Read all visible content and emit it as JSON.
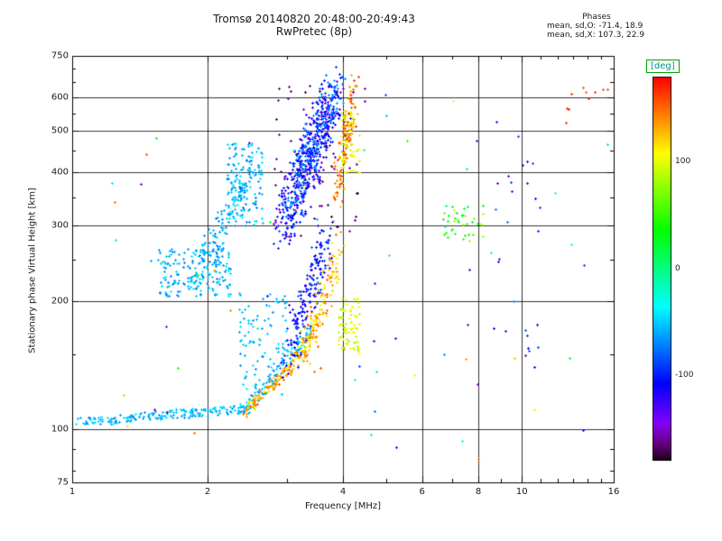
{
  "annotations": {
    "phases_heading": "Phases",
    "phases_o": "mean, sd,O: -71.4, 18.9",
    "phases_x": "mean, sd,X: 107.3, 22.9"
  },
  "colorbar": {
    "label": "[deg]",
    "ticks": [
      100,
      0,
      -100
    ],
    "range": [
      -180,
      180
    ],
    "label_color": "#008b8b",
    "box_border_color": "#00a000"
  },
  "chart_data": {
    "type": "scatter",
    "title": "Tromsø 20140820 20:48:00-20:49:43",
    "subtitle": "RwPretec (8p)",
    "xlabel": "Frequency [MHz]",
    "ylabel": "Stationary phase Virtual Height [km]",
    "xscale": "log",
    "yscale": "log",
    "xlim": [
      1,
      16
    ],
    "ylim": [
      75,
      750
    ],
    "x_ticks": [
      1,
      2,
      4,
      6,
      8,
      10,
      16
    ],
    "x_grid": [
      2,
      4,
      6,
      8,
      10
    ],
    "x_minor": [
      3,
      5,
      7,
      9,
      11,
      12,
      13,
      14,
      15
    ],
    "y_ticks": [
      750,
      600,
      500,
      400,
      300,
      200,
      100,
      75
    ],
    "y_grid": [
      600,
      500,
      400,
      300,
      200,
      100
    ],
    "y_minor": [
      80,
      90,
      150,
      250,
      350,
      450,
      550,
      650,
      700
    ],
    "color_range": [
      -180,
      180
    ],
    "colormap": "rainbow",
    "marker": "plus",
    "seed": 20140820,
    "clusters": [
      {
        "name": "e-trace-cyan-flat",
        "mode": "trace",
        "n": 190,
        "x": [
          1.02,
          2.45
        ],
        "y": [
          104,
          112
        ],
        "jx": 0.02,
        "jy": 0.05,
        "v": [
          -70,
          -40
        ]
      },
      {
        "name": "e-trace-cyan-rise",
        "mode": "trace",
        "n": 90,
        "x": [
          2.45,
          3.35
        ],
        "y": [
          112,
          170
        ],
        "jx": 0.03,
        "jy": 0.08,
        "v": [
          -70,
          -40
        ]
      },
      {
        "name": "e-trace-orange",
        "mode": "trace",
        "n": 95,
        "x": [
          2.4,
          3.1
        ],
        "y": [
          109,
          142
        ],
        "jx": 0.02,
        "jy": 0.06,
        "v": [
          110,
          160
        ]
      },
      {
        "name": "orange-mid-trace",
        "mode": "trace",
        "n": 60,
        "x": [
          3.0,
          3.6
        ],
        "y": [
          135,
          185
        ],
        "jx": 0.03,
        "jy": 0.1,
        "v": [
          100,
          150
        ]
      },
      {
        "name": "cyan-blob-midleft",
        "mode": "blob",
        "n": 170,
        "x": [
          1.55,
          2.25
        ],
        "y": [
          205,
          265
        ],
        "v": [
          -75,
          -40
        ]
      },
      {
        "name": "cyan-ascending",
        "mode": "trace",
        "n": 150,
        "x": [
          1.9,
          2.55
        ],
        "y": [
          230,
          430
        ],
        "jx": 0.08,
        "jy": 0.15,
        "v": [
          -75,
          -40
        ]
      },
      {
        "name": "cyan-upper-patch",
        "mode": "blob",
        "n": 120,
        "x": [
          2.2,
          2.65
        ],
        "y": [
          300,
          470
        ],
        "v": [
          -75,
          -40
        ]
      },
      {
        "name": "main-darkblue-band",
        "mode": "trace",
        "n": 430,
        "x": [
          2.95,
          3.8
        ],
        "y": [
          300,
          620
        ],
        "jx": 0.12,
        "jy": 0.25,
        "v": [
          -140,
          -90
        ]
      },
      {
        "name": "main-blue-band",
        "mode": "trace",
        "n": 210,
        "x": [
          3.0,
          3.85
        ],
        "y": [
          320,
          640
        ],
        "jx": 0.1,
        "jy": 0.22,
        "v": [
          -95,
          -60
        ]
      },
      {
        "name": "orange-right-column",
        "mode": "trace",
        "n": 130,
        "x": [
          3.85,
          4.25
        ],
        "y": [
          360,
          630
        ],
        "jx": 0.04,
        "jy": 0.3,
        "v": [
          120,
          170
        ]
      },
      {
        "name": "yellow-upper-accents",
        "mode": "blob",
        "n": 55,
        "x": [
          3.95,
          4.35
        ],
        "y": [
          400,
          560
        ],
        "v": [
          80,
          115
        ]
      },
      {
        "name": "secondhop-blue",
        "mode": "trace",
        "n": 180,
        "x": [
          3.0,
          3.7
        ],
        "y": [
          150,
          280
        ],
        "jx": 0.08,
        "jy": 0.25,
        "v": [
          -130,
          -80
        ]
      },
      {
        "name": "secondhop-orange",
        "mode": "trace",
        "n": 115,
        "x": [
          3.25,
          3.95
        ],
        "y": [
          148,
          265
        ],
        "jx": 0.05,
        "jy": 0.2,
        "v": [
          105,
          155
        ]
      },
      {
        "name": "yellow-low-patch",
        "mode": "blob",
        "n": 70,
        "x": [
          3.9,
          4.35
        ],
        "y": [
          148,
          205
        ],
        "v": [
          80,
          115
        ]
      },
      {
        "name": "cyan-lowmid-blob",
        "mode": "blob",
        "n": 95,
        "x": [
          2.35,
          3.0
        ],
        "y": [
          120,
          210
        ],
        "v": [
          -70,
          -40
        ]
      },
      {
        "name": "green-cluster-7mhz",
        "mode": "blob",
        "n": 38,
        "x": [
          6.6,
          8.3
        ],
        "y": [
          275,
          335
        ],
        "v": [
          10,
          90
        ]
      },
      {
        "name": "sparse-anywhere",
        "mode": "blob",
        "n": 70,
        "x": [
          1.2,
          15.5
        ],
        "y": [
          85,
          650
        ],
        "v": [
          -170,
          170
        ]
      },
      {
        "name": "red-high-right",
        "mode": "blob",
        "n": 8,
        "x": [
          12.5,
          15.5
        ],
        "y": [
          560,
          640
        ],
        "v": [
          150,
          175
        ]
      },
      {
        "name": "blue-sparse-right",
        "mode": "blob",
        "n": 25,
        "x": [
          8.5,
          11.0
        ],
        "y": [
          120,
          620
        ],
        "v": [
          -140,
          -70
        ]
      },
      {
        "name": "dark-speckle-main",
        "mode": "blob",
        "n": 60,
        "x": [
          2.8,
          4.5
        ],
        "y": [
          280,
          650
        ],
        "v": [
          -175,
          -150
        ]
      }
    ]
  }
}
